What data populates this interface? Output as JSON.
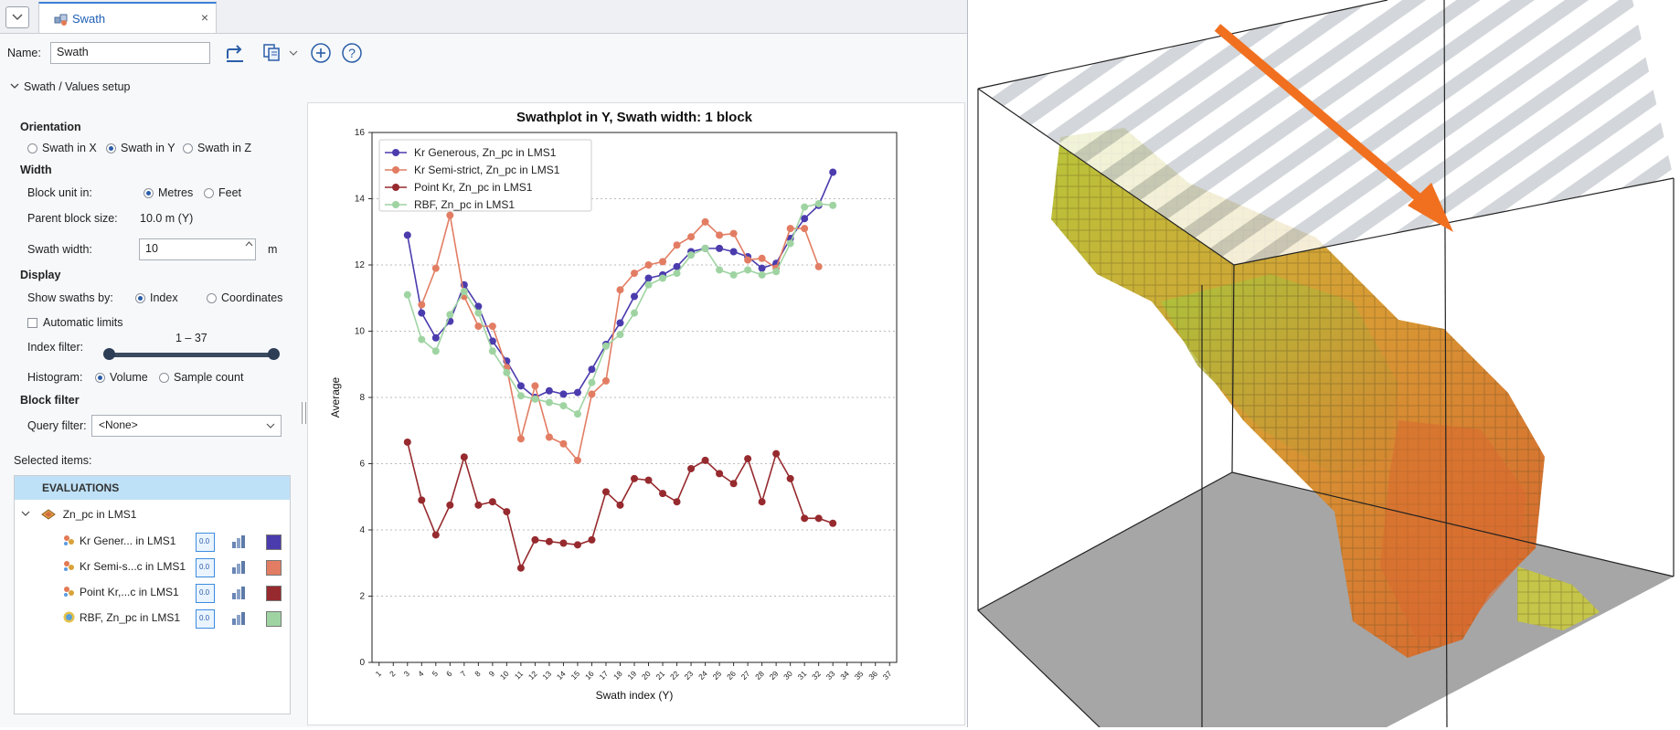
{
  "tab": {
    "title": "Swath",
    "close": "×",
    "menu_icon": "chevron-down-icon"
  },
  "name_row": {
    "label": "Name:",
    "value": "Swath"
  },
  "setup": {
    "header": "Swath / Values setup",
    "orientation_title": "Orientation",
    "orientation_options": [
      "Swath in X",
      "Swath in Y",
      "Swath in Z"
    ],
    "orientation_selected": "Swath in Y",
    "width_title": "Width",
    "block_unit_label": "Block unit in:",
    "unit_options": [
      "Metres",
      "Feet"
    ],
    "unit_selected": "Metres",
    "parent_block_label": "Parent block size:",
    "parent_block_value": "10.0 m  (Y)",
    "swath_width_label": "Swath width:",
    "swath_width_value": "10",
    "swath_width_unit": "m",
    "display_title": "Display",
    "show_swaths_label": "Show swaths by:",
    "show_swaths_options": [
      "Index",
      "Coordinates"
    ],
    "show_swaths_selected": "Index",
    "auto_limits_label": "Automatic limits",
    "index_filter_label": "Index filter:",
    "index_filter_value": "1 – 37",
    "index_filter_range": [
      1,
      37
    ],
    "histogram_label": "Histogram:",
    "histogram_options": [
      "Volume",
      "Sample count"
    ],
    "histogram_selected": "Volume",
    "block_filter_title": "Block filter",
    "query_filter_label": "Query filter:",
    "query_filter_value": "<None>"
  },
  "selected": {
    "title": "Selected items:",
    "header": "EVALUATIONS",
    "parent": "Zn_pc in LMS1",
    "items": [
      {
        "label": "Kr Gener... in LMS1",
        "color": "#4b3cae"
      },
      {
        "label": "Kr Semi-s...c in LMS1",
        "color": "#e27d63"
      },
      {
        "label": "Point Kr,...c in LMS1",
        "color": "#962a2e"
      },
      {
        "label": "RBF, Zn_pc in LMS1",
        "color": "#9fd4a2"
      }
    ],
    "value_btn": "0.0"
  },
  "chart_data": {
    "type": "line",
    "title": "Swathplot in Y, Swath width: 1 block",
    "xlabel": "Swath index (Y)",
    "ylabel": "Average",
    "ylim": [
      0,
      16
    ],
    "yticks": [
      0,
      2,
      4,
      6,
      8,
      10,
      12,
      14,
      16
    ],
    "xlim": [
      0.5,
      37.5
    ],
    "xticks": [
      1,
      2,
      3,
      4,
      5,
      6,
      7,
      8,
      9,
      10,
      11,
      12,
      13,
      14,
      15,
      16,
      17,
      18,
      19,
      20,
      21,
      22,
      23,
      24,
      25,
      26,
      27,
      28,
      29,
      30,
      31,
      32,
      33,
      34,
      35,
      36,
      37
    ],
    "grid": "horizontal dashed",
    "legend": "top-left",
    "x": [
      3,
      4,
      5,
      6,
      7,
      8,
      9,
      10,
      11,
      12,
      13,
      14,
      15,
      16,
      17,
      18,
      19,
      20,
      21,
      22,
      23,
      24,
      25,
      26,
      27,
      28,
      29,
      30,
      31,
      32,
      33
    ],
    "series": [
      {
        "name": "Kr Generous, Zn_pc in LMS1",
        "color": "#4b3cae",
        "values": [
          12.9,
          10.55,
          9.8,
          10.3,
          11.4,
          10.75,
          9.7,
          9.1,
          8.35,
          8.0,
          8.2,
          8.1,
          8.15,
          8.85,
          9.6,
          10.25,
          11.05,
          11.6,
          11.7,
          11.95,
          12.4,
          12.5,
          12.5,
          12.4,
          12.25,
          11.9,
          12.05,
          12.8,
          13.4,
          13.8,
          14.8
        ]
      },
      {
        "name": "Kr Semi-strict, Zn_pc in LMS1",
        "color": "#e27d63",
        "values": [
          null,
          10.8,
          11.9,
          13.5,
          11.05,
          10.15,
          10.15,
          8.9,
          6.75,
          8.35,
          6.8,
          6.6,
          6.1,
          8.1,
          8.5,
          11.25,
          11.75,
          12.0,
          12.1,
          12.6,
          12.85,
          13.3,
          12.9,
          12.95,
          12.15,
          12.2,
          11.9,
          13.1,
          13.1,
          11.95,
          null
        ]
      },
      {
        "name": "Point Kr, Zn_pc in LMS1",
        "color": "#962a2e",
        "values": [
          6.65,
          4.9,
          3.85,
          4.75,
          6.2,
          4.75,
          4.85,
          4.55,
          2.85,
          3.7,
          3.65,
          3.6,
          3.55,
          3.7,
          5.15,
          4.75,
          5.55,
          5.5,
          5.1,
          4.85,
          5.85,
          6.1,
          5.7,
          5.4,
          6.15,
          4.85,
          6.3,
          5.55,
          4.35,
          4.35,
          4.2
        ]
      },
      {
        "name": "RBF, Zn_pc in LMS1",
        "color": "#9fd4a2",
        "values": [
          11.1,
          9.75,
          9.4,
          10.5,
          11.2,
          10.55,
          9.4,
          8.75,
          8.05,
          7.95,
          7.85,
          7.75,
          7.5,
          8.45,
          9.55,
          9.9,
          10.55,
          11.4,
          11.6,
          11.75,
          12.3,
          12.5,
          11.85,
          11.7,
          11.85,
          11.7,
          11.8,
          12.65,
          13.75,
          13.85,
          13.8
        ]
      }
    ]
  },
  "view3d": {
    "arrow_color": "#f07020",
    "stripe_color": "#c8ccd1",
    "floor_color": "#a6a6a6"
  }
}
